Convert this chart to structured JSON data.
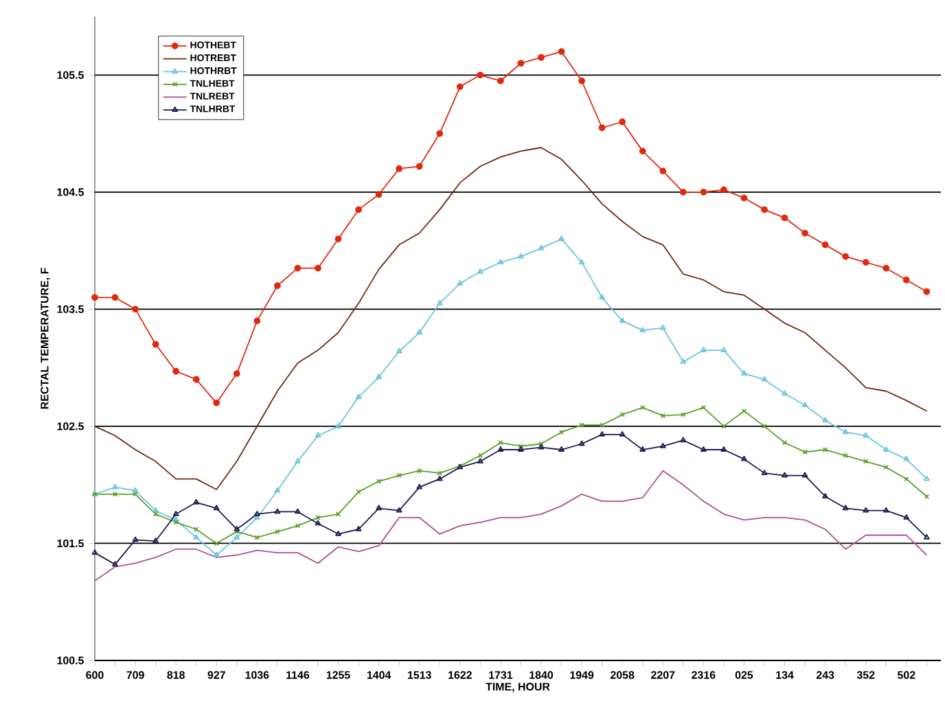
{
  "chart_data": {
    "type": "line",
    "xlabel": "TIME, HOUR",
    "ylabel": "RECTAL TEMPERATURE, F",
    "categories": [
      "600",
      null,
      "709",
      null,
      "818",
      null,
      "927",
      null,
      "1036",
      null,
      "1146",
      null,
      "1255",
      null,
      "1404",
      null,
      "1513",
      null,
      "1622",
      null,
      "1731",
      null,
      "1840",
      null,
      "1949",
      null,
      "2058",
      null,
      "2207",
      null,
      "2316",
      null,
      "025",
      null,
      "134",
      null,
      "243",
      null,
      "352",
      null,
      "502",
      null
    ],
    "ylim": [
      100.5,
      106
    ],
    "yticks": [
      100.5,
      101.5,
      102.5,
      103.5,
      104.5,
      105.5
    ],
    "grid": "y",
    "legend": "top left",
    "series": [
      {
        "name": "HOTHEBT",
        "color": "#e02a10",
        "marker": "circle",
        "values": [
          103.6,
          103.6,
          103.5,
          103.2,
          102.97,
          102.9,
          102.7,
          102.95,
          103.4,
          103.7,
          103.85,
          103.85,
          104.1,
          104.35,
          104.48,
          104.7,
          104.72,
          105.0,
          105.4,
          105.5,
          105.45,
          105.6,
          105.65,
          105.7,
          105.45,
          105.05,
          105.1,
          104.85,
          104.68,
          104.5,
          104.5,
          104.52,
          104.45,
          104.35,
          104.28,
          104.15,
          104.05,
          103.95,
          103.9,
          103.85,
          103.75,
          103.65
        ]
      },
      {
        "name": "HOTREBT",
        "color": "#6b2a12",
        "marker": "none",
        "values": [
          102.5,
          102.42,
          102.3,
          102.2,
          102.05,
          102.05,
          101.96,
          102.2,
          102.5,
          102.8,
          103.04,
          103.15,
          103.3,
          103.55,
          103.84,
          104.05,
          104.15,
          104.35,
          104.58,
          104.72,
          104.8,
          104.85,
          104.88,
          104.78,
          104.6,
          104.4,
          104.25,
          104.12,
          104.05,
          103.8,
          103.75,
          103.65,
          103.62,
          103.5,
          103.38,
          103.3,
          103.15,
          103.0,
          102.83,
          102.8,
          102.72,
          102.63
        ]
      },
      {
        "name": "HOTHRBT",
        "color": "#6cc4dc",
        "marker": "triangle",
        "values": [
          101.92,
          101.98,
          101.95,
          101.78,
          101.7,
          101.55,
          101.4,
          101.55,
          101.72,
          101.95,
          102.2,
          102.42,
          102.5,
          102.75,
          102.92,
          103.14,
          103.3,
          103.55,
          103.72,
          103.82,
          103.9,
          103.95,
          104.02,
          104.1,
          103.9,
          103.6,
          103.4,
          103.32,
          103.34,
          103.05,
          103.15,
          103.15,
          102.95,
          102.9,
          102.78,
          102.68,
          102.55,
          102.45,
          102.42,
          102.3,
          102.22,
          102.05
        ]
      },
      {
        "name": "TNLHEBT",
        "color": "#5aa02c",
        "marker": "cross",
        "values": [
          101.92,
          101.92,
          101.92,
          101.75,
          101.68,
          101.62,
          101.5,
          101.6,
          101.55,
          101.6,
          101.65,
          101.72,
          101.75,
          101.94,
          102.03,
          102.08,
          102.12,
          102.1,
          102.16,
          102.25,
          102.36,
          102.33,
          102.35,
          102.45,
          102.51,
          102.51,
          102.6,
          102.66,
          102.59,
          102.6,
          102.66,
          102.5,
          102.63,
          102.5,
          102.36,
          102.28,
          102.3,
          102.25,
          102.2,
          102.15,
          102.05,
          101.9
        ]
      },
      {
        "name": "TNLREBT",
        "color": "#b0508c",
        "marker": "none",
        "values": [
          101.18,
          101.3,
          101.33,
          101.38,
          101.45,
          101.45,
          101.38,
          101.4,
          101.44,
          101.42,
          101.42,
          101.33,
          101.47,
          101.43,
          101.48,
          101.72,
          101.72,
          101.58,
          101.65,
          101.68,
          101.72,
          101.72,
          101.75,
          101.82,
          101.92,
          101.86,
          101.86,
          101.89,
          102.12,
          102.0,
          101.86,
          101.75,
          101.7,
          101.72,
          101.72,
          101.7,
          101.62,
          101.45,
          101.57,
          101.57,
          101.57,
          101.4
        ]
      },
      {
        "name": "TNLHRBT",
        "color": "#1c1c52",
        "marker": "triangle",
        "values": [
          101.42,
          101.32,
          101.53,
          101.52,
          101.75,
          101.85,
          101.8,
          101.62,
          101.75,
          101.77,
          101.77,
          101.67,
          101.58,
          101.62,
          101.8,
          101.78,
          101.98,
          102.05,
          102.15,
          102.2,
          102.3,
          102.3,
          102.32,
          102.3,
          102.35,
          102.43,
          102.43,
          102.3,
          102.33,
          102.38,
          102.3,
          102.3,
          102.22,
          102.1,
          102.08,
          102.08,
          101.9,
          101.8,
          101.78,
          101.78,
          101.72,
          101.55
        ]
      }
    ]
  }
}
